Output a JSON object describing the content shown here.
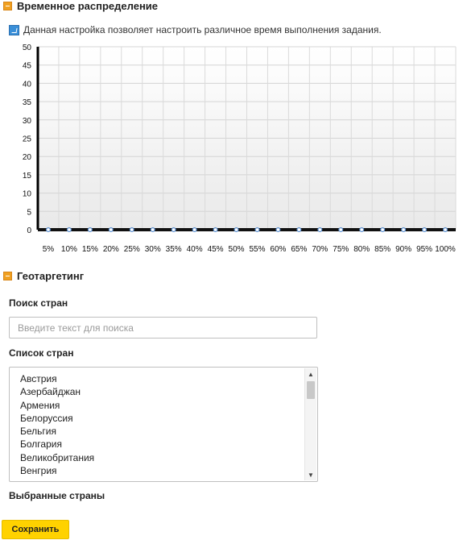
{
  "time_distribution": {
    "title": "Временное распределение",
    "hint": "Данная настройка позволяет настроить различное время выполнения задания."
  },
  "chart_data": {
    "type": "line",
    "x": [
      "5%",
      "10%",
      "15%",
      "20%",
      "25%",
      "30%",
      "35%",
      "40%",
      "45%",
      "50%",
      "55%",
      "60%",
      "65%",
      "70%",
      "75%",
      "80%",
      "85%",
      "90%",
      "95%",
      "100%"
    ],
    "values": [
      0,
      0,
      0,
      0,
      0,
      0,
      0,
      0,
      0,
      0,
      0,
      0,
      0,
      0,
      0,
      0,
      0,
      0,
      0,
      0
    ],
    "yticks": [
      "0",
      "5",
      "10",
      "15",
      "20",
      "25",
      "30",
      "35",
      "40",
      "45",
      "50"
    ],
    "ylim": [
      0,
      50
    ],
    "grid": true,
    "line_color": "#111111",
    "point_color": "#5b8fd0"
  },
  "geotargeting": {
    "title": "Геотаргетинг",
    "search_label": "Поиск стран",
    "search_placeholder": "Введите текст для поиска",
    "search_value": "",
    "list_label": "Список стран",
    "countries": [
      "Австрия",
      "Азербайджан",
      "Армения",
      "Белоруссия",
      "Бельгия",
      "Болгария",
      "Великобритания",
      "Венгрия"
    ],
    "selected_label": "Выбранные страны"
  },
  "save_label": "Сохранить",
  "colors": {
    "accent": "#f0a020",
    "button": "#ffd200",
    "info": "#3a8fd8"
  }
}
